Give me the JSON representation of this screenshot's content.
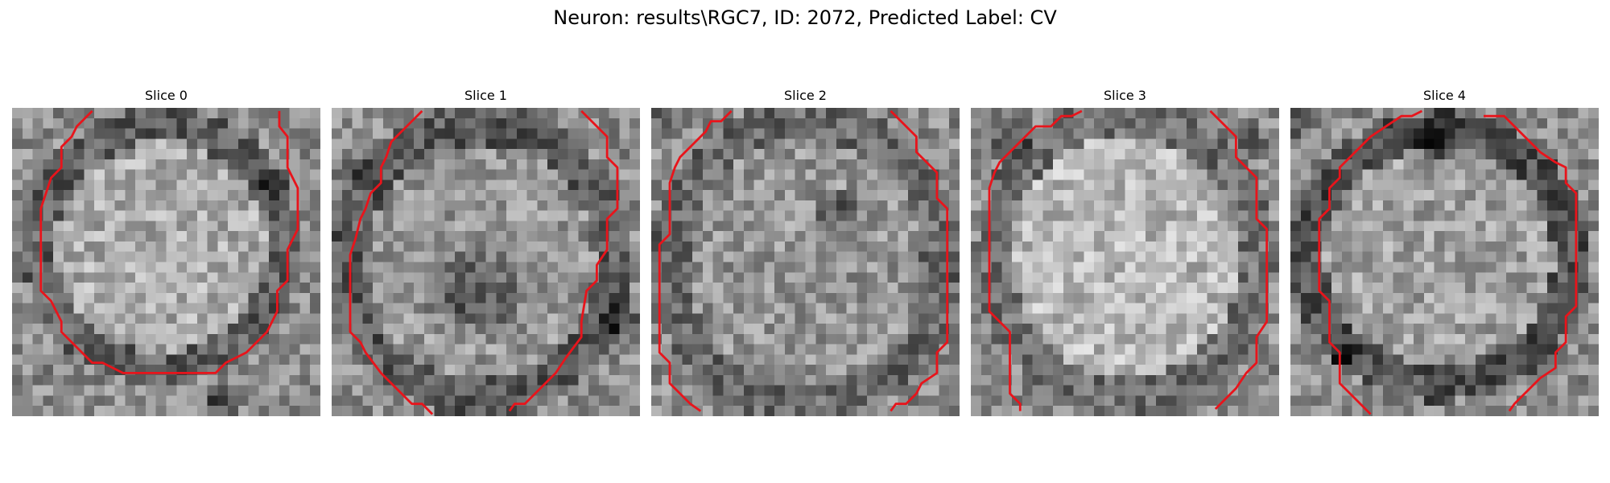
{
  "figure": {
    "title": "Neuron: results\\RGC7, ID: 2072, Predicted Label: CV",
    "contour_color": "#e8141b"
  },
  "slices": [
    {
      "title": "Slice 0"
    },
    {
      "title": "Slice 1"
    },
    {
      "title": "Slice 2"
    },
    {
      "title": "Slice 3"
    },
    {
      "title": "Slice 4"
    }
  ]
}
